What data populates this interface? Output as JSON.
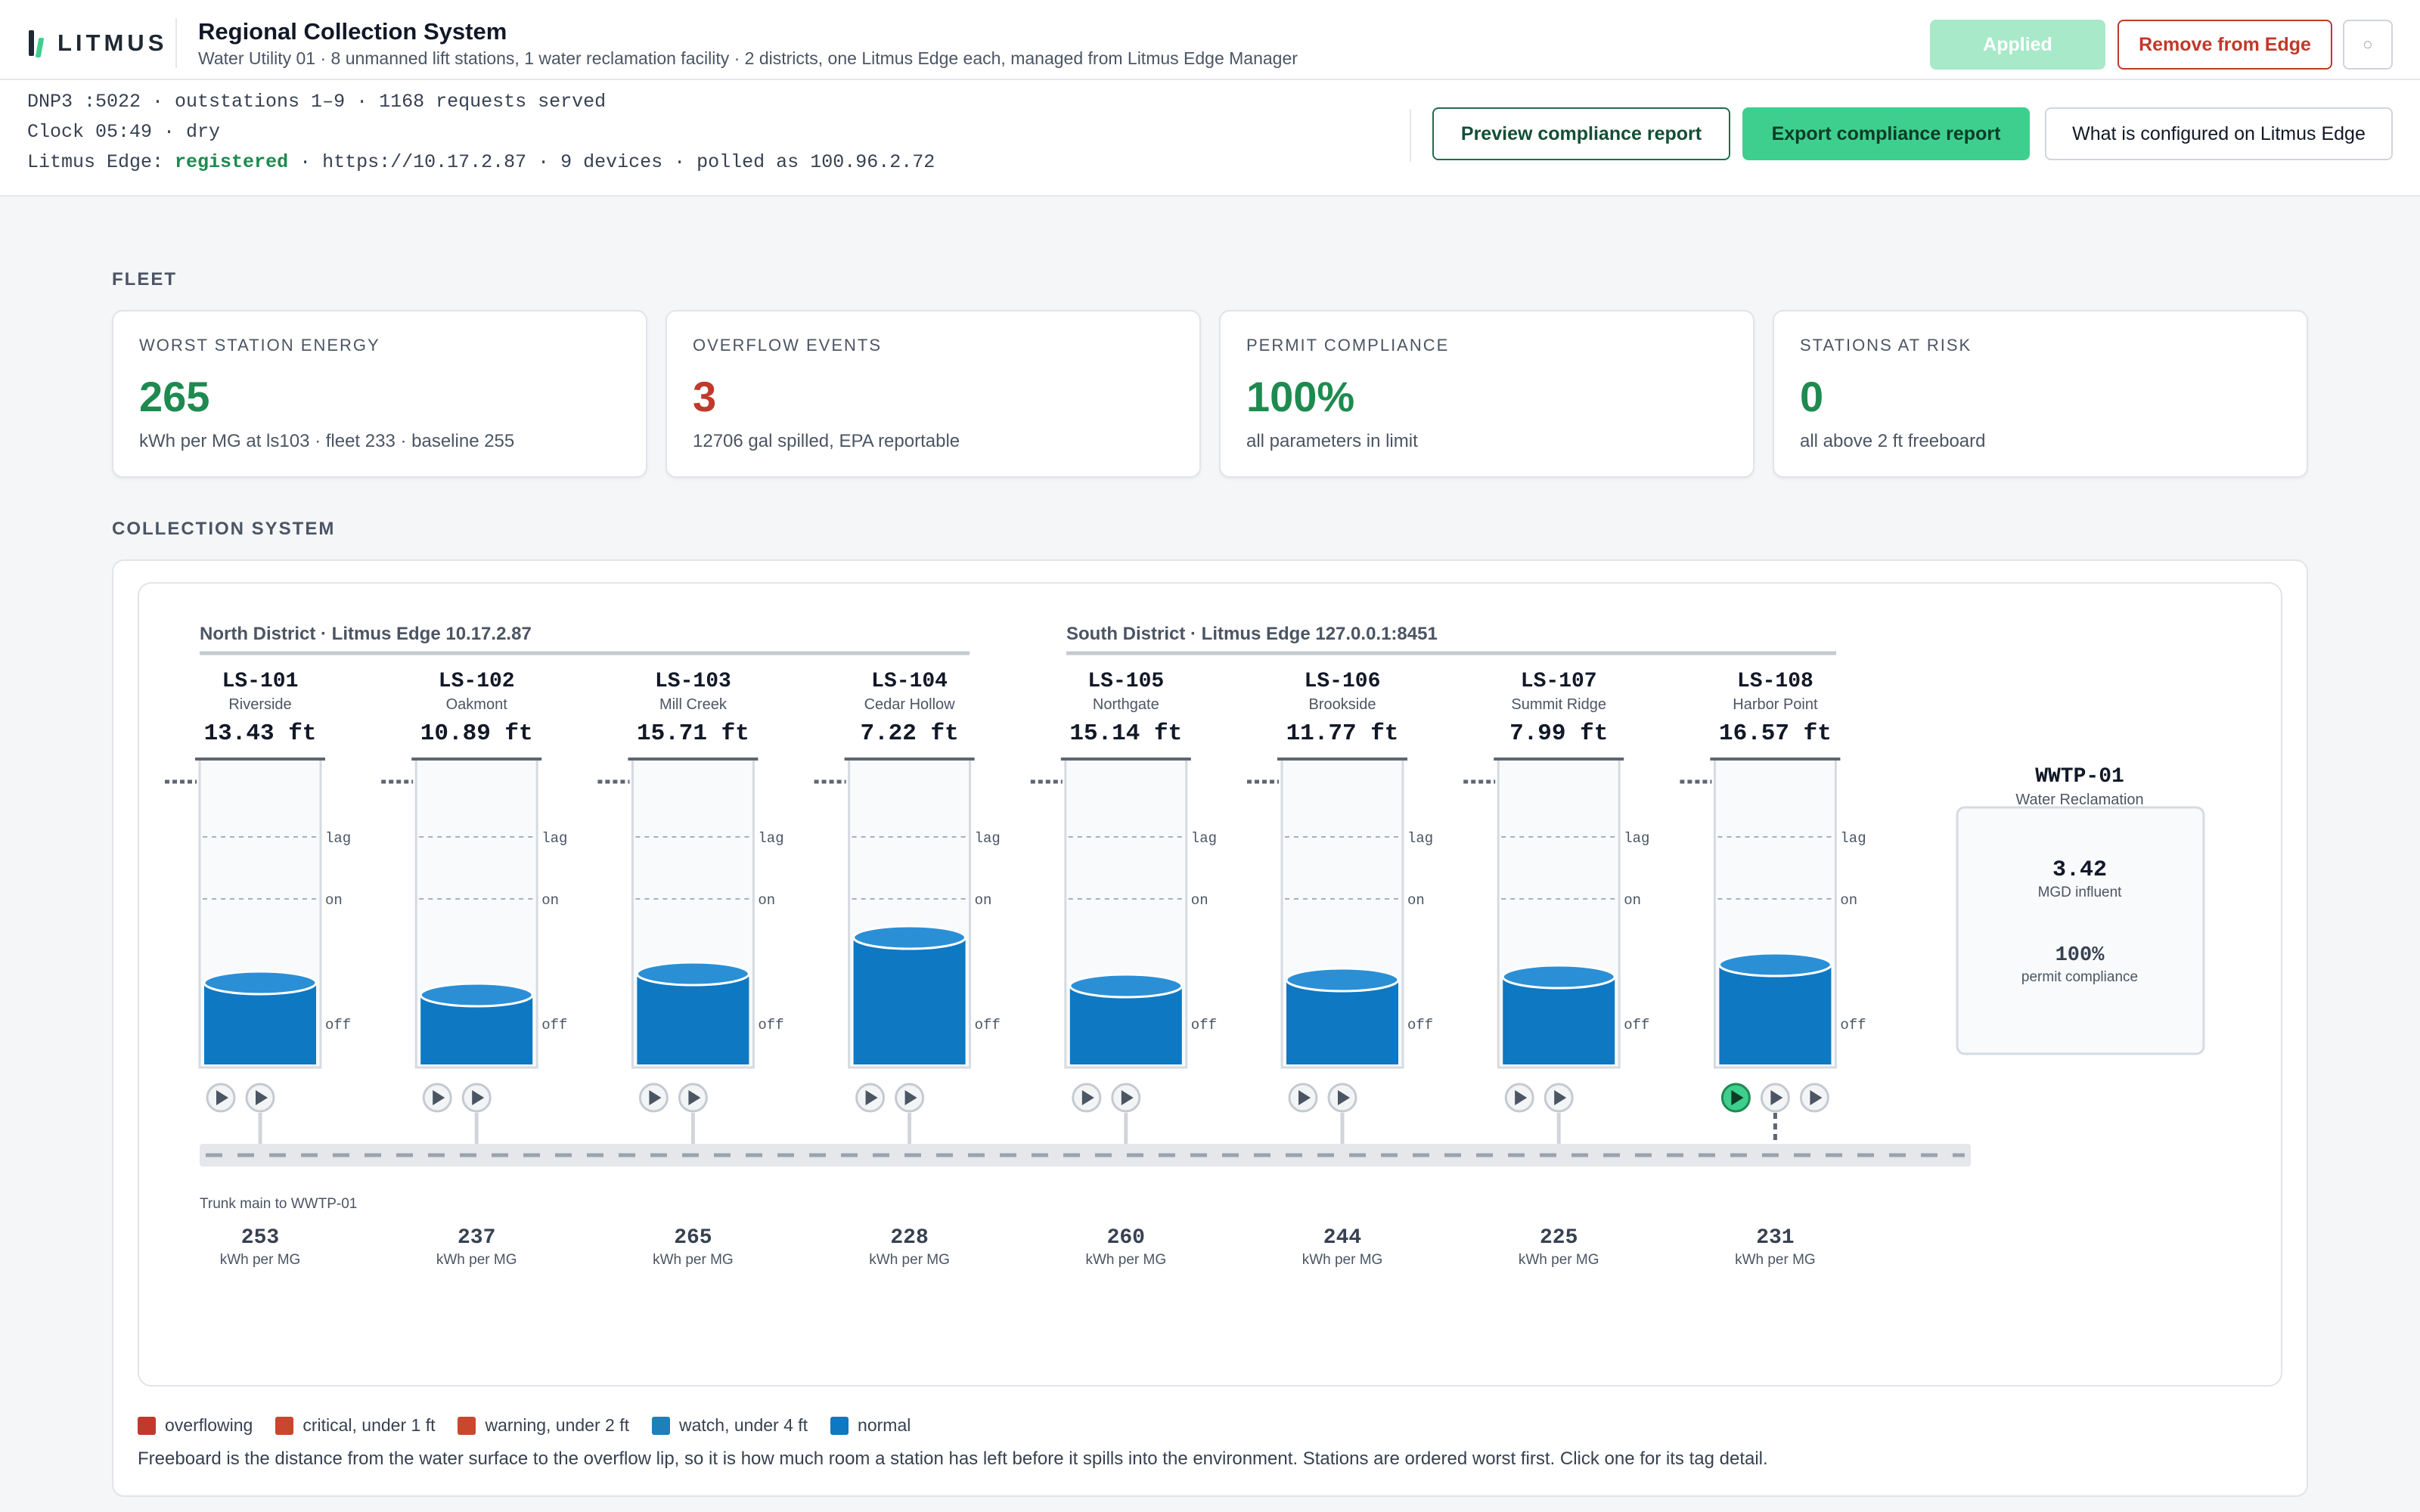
{
  "header": {
    "logo_text": "LITMUS",
    "title": "Regional Collection System",
    "subtitle": "Water Utility 01 · 8 unmanned lift stations, 1 water reclamation facility · 2 districts, one Litmus Edge each, managed from Litmus Edge Manager",
    "applied_label": "Applied",
    "remove_label": "Remove from Edge",
    "icon_button_glyph": "◌",
    "icon_button_icon": "theme-toggle-icon"
  },
  "status": {
    "line1": "DNP3 :5022 · outstations 1–9 · 1168 requests served",
    "line2": "Clock 05:49 · dry",
    "line3_prefix": "Litmus Edge: ",
    "line3_state": "registered",
    "line3_suffix": " · https://10.17.2.87 · 9 devices · polled as 100.96.2.72",
    "preview_label": "Preview compliance report",
    "export_label": "Export compliance report",
    "config_label": "What is configured on Litmus Edge"
  },
  "fleet": {
    "section_label": "FLEET",
    "cards": [
      {
        "label": "WORST STATION ENERGY",
        "value": "265",
        "desc": "kWh per MG at ls103 · fleet 233 · baseline 255",
        "color": "#1e8a4f"
      },
      {
        "label": "OVERFLOW EVENTS",
        "value": "3",
        "desc": "12706 gal spilled, EPA reportable",
        "color": "#c0392b"
      },
      {
        "label": "PERMIT COMPLIANCE",
        "value": "100%",
        "desc": "all parameters in limit",
        "color": "#1e8a4f"
      },
      {
        "label": "STATIONS AT RISK",
        "value": "0",
        "desc": "all above 2 ft freeboard",
        "color": "#1e8a4f"
      }
    ]
  },
  "collection": {
    "section_label": "COLLECTION SYSTEM",
    "districts": [
      {
        "label": "North District · Litmus Edge 10.17.2.87"
      },
      {
        "label": "South District · Litmus Edge 127.0.0.1:8451"
      }
    ],
    "level_labels": {
      "lag": "lag",
      "on": "on",
      "off": "off"
    },
    "stations": [
      {
        "id": "LS-101",
        "name": "Riverside",
        "level": "13.43 ft",
        "fill": 0.27,
        "pumps": 2,
        "running": 0,
        "energy": "253",
        "energy_unit": "kWh per MG"
      },
      {
        "id": "LS-102",
        "name": "Oakmont",
        "level": "10.89 ft",
        "fill": 0.23,
        "pumps": 2,
        "running": 0,
        "energy": "237",
        "energy_unit": "kWh per MG"
      },
      {
        "id": "LS-103",
        "name": "Mill Creek",
        "level": "15.71 ft",
        "fill": 0.3,
        "pumps": 2,
        "running": 0,
        "energy": "265",
        "energy_unit": "kWh per MG"
      },
      {
        "id": "LS-104",
        "name": "Cedar Hollow",
        "level": "7.22 ft",
        "fill": 0.42,
        "pumps": 2,
        "running": 0,
        "energy": "228",
        "energy_unit": "kWh per MG"
      },
      {
        "id": "LS-105",
        "name": "Northgate",
        "level": "15.14 ft",
        "fill": 0.26,
        "pumps": 2,
        "running": 0,
        "energy": "260",
        "energy_unit": "kWh per MG"
      },
      {
        "id": "LS-106",
        "name": "Brookside",
        "level": "11.77 ft",
        "fill": 0.28,
        "pumps": 2,
        "running": 0,
        "energy": "244",
        "energy_unit": "kWh per MG"
      },
      {
        "id": "LS-107",
        "name": "Summit Ridge",
        "level": "7.99 ft",
        "fill": 0.29,
        "pumps": 2,
        "running": 0,
        "energy": "225",
        "energy_unit": "kWh per MG"
      },
      {
        "id": "LS-108",
        "name": "Harbor Point",
        "level": "16.57 ft",
        "fill": 0.33,
        "pumps": 3,
        "running": 1,
        "energy": "231",
        "energy_unit": "kWh per MG"
      }
    ],
    "trunk_label": "Trunk main to WWTP-01",
    "wwtp": {
      "id": "WWTP-01",
      "name": "Water Reclamation",
      "influent_value": "3.42",
      "influent_label": "MGD influent",
      "compliance_value": "100%",
      "compliance_label": "permit compliance"
    },
    "legend": [
      {
        "label": "overflowing",
        "color": "#c0392b"
      },
      {
        "label": "critical, under 1 ft",
        "color": "#c9472c"
      },
      {
        "label": "warning, under 2 ft",
        "color": "#c9472c"
      },
      {
        "label": "watch, under 4 ft",
        "color": "#1f7fb8"
      },
      {
        "label": "normal",
        "color": "#0e78c2"
      }
    ],
    "footnote": "Freeboard is the distance from the water surface to the overflow lip, so it is how much room a station has left before it spills into the environment. Stations are ordered worst first. Click one for its tag detail.",
    "colors": {
      "water": "#0e78c2",
      "water_top": "#2b8fd6",
      "pump_on": "#3ecf8e"
    }
  }
}
